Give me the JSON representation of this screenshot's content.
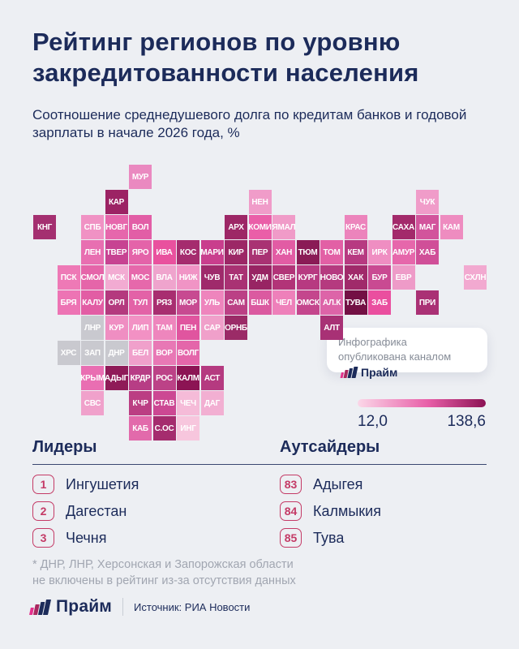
{
  "title": "Рейтинг регионов по уровню\nзакредитованности населения",
  "subtitle": "Соотношение среднедушевого долга по кредитам банков и годовой зарплаты в начале 2026 года, %",
  "badge": {
    "text": "Инфографика опубликована каналом",
    "brand": "Прайм"
  },
  "legend": {
    "min_label": "12,0",
    "max_label": "138,6",
    "gradient": [
      "#fbd7e8",
      "#e85fa8",
      "#8c1254"
    ]
  },
  "leaders": {
    "heading": "Лидеры",
    "items": [
      {
        "rank": "1",
        "name": "Ингушетия"
      },
      {
        "rank": "2",
        "name": "Дагестан"
      },
      {
        "rank": "3",
        "name": "Чечня"
      }
    ]
  },
  "outsiders": {
    "heading": "Аутсайдеры",
    "items": [
      {
        "rank": "83",
        "name": "Адыгея"
      },
      {
        "rank": "84",
        "name": "Калмыкия"
      },
      {
        "rank": "85",
        "name": "Тува"
      }
    ]
  },
  "footnote": "* ДНР, ЛНР, Херсонская и Запорожская области\nне включены в рейтинг из-за отсутствия данных",
  "footer": {
    "brand": "Прайм",
    "source": "Источник: РИА Новости"
  },
  "colors": {
    "background": "#edeff3",
    "heading_navy": "#1c2b5a",
    "rank_accent": "#c43a66",
    "excluded_gray": "#c9c9cf"
  },
  "map": {
    "tiles": [
      {
        "label": "МУР",
        "col": 4,
        "row": 0,
        "color": "#ea89c0"
      },
      {
        "label": "КАР",
        "col": 3,
        "row": 1,
        "color": "#9c2364"
      },
      {
        "label": "НЕН",
        "col": 9,
        "row": 1,
        "color": "#f09cc9"
      },
      {
        "label": "ЧУК",
        "col": 16,
        "row": 1,
        "color": "#f09cc9"
      },
      {
        "label": "КНГ",
        "col": 0,
        "row": 2,
        "color": "#a42f70"
      },
      {
        "label": "СПБ",
        "col": 2,
        "row": 2,
        "color": "#f092c4"
      },
      {
        "label": "НОВГ",
        "col": 3,
        "row": 2,
        "color": "#e667ac"
      },
      {
        "label": "ВОЛ",
        "col": 4,
        "row": 2,
        "color": "#e25ea6"
      },
      {
        "label": "АРХ",
        "col": 8,
        "row": 2,
        "color": "#9d2766"
      },
      {
        "label": "КОМИ",
        "col": 9,
        "row": 2,
        "color": "#ea5ea8"
      },
      {
        "label": "ЯМАЛ",
        "col": 10,
        "row": 2,
        "color": "#f09bc8"
      },
      {
        "label": "КРАС",
        "col": 13,
        "row": 2,
        "color": "#ec84bc"
      },
      {
        "label": "САХА",
        "col": 15,
        "row": 2,
        "color": "#a32a6b"
      },
      {
        "label": "МАГ",
        "col": 16,
        "row": 2,
        "color": "#d2549c"
      },
      {
        "label": "КАМ",
        "col": 17,
        "row": 2,
        "color": "#ee8cc0"
      },
      {
        "label": "ЛЕН",
        "col": 2,
        "row": 3,
        "color": "#e86fb1"
      },
      {
        "label": "ТВЕР",
        "col": 3,
        "row": 3,
        "color": "#c74392"
      },
      {
        "label": "ЯРО",
        "col": 4,
        "row": 3,
        "color": "#e463a9"
      },
      {
        "label": "ИВА",
        "col": 5,
        "row": 3,
        "color": "#e9519e"
      },
      {
        "label": "КОС",
        "col": 6,
        "row": 3,
        "color": "#a52c6e"
      },
      {
        "label": "МАРИ",
        "col": 7,
        "row": 3,
        "color": "#c93e8d"
      },
      {
        "label": "КИР",
        "col": 8,
        "row": 3,
        "color": "#9c2766"
      },
      {
        "label": "ПЕР",
        "col": 9,
        "row": 3,
        "color": "#a93273"
      },
      {
        "label": "ХАН",
        "col": 10,
        "row": 3,
        "color": "#e25ca4"
      },
      {
        "label": "ТЮМ",
        "col": 11,
        "row": 3,
        "color": "#8a1b56"
      },
      {
        "label": "ТОМ",
        "col": 12,
        "row": 3,
        "color": "#e260a5"
      },
      {
        "label": "КЕМ",
        "col": 13,
        "row": 3,
        "color": "#b73a81"
      },
      {
        "label": "ИРК",
        "col": 14,
        "row": 3,
        "color": "#ef8ec2"
      },
      {
        "label": "АМУР",
        "col": 15,
        "row": 3,
        "color": "#e667ab"
      },
      {
        "label": "ХАБ",
        "col": 16,
        "row": 3,
        "color": "#d04f98"
      },
      {
        "label": "ПСК",
        "col": 1,
        "row": 4,
        "color": "#ee79b6"
      },
      {
        "label": "СМОЛ",
        "col": 2,
        "row": 4,
        "color": "#e565a9"
      },
      {
        "label": "МСК",
        "col": 3,
        "row": 4,
        "color": "#f2abd2"
      },
      {
        "label": "МОС",
        "col": 4,
        "row": 4,
        "color": "#e668ab"
      },
      {
        "label": "ВЛА",
        "col": 5,
        "row": 4,
        "color": "#efa4cd"
      },
      {
        "label": "НИЖ",
        "col": 6,
        "row": 4,
        "color": "#f094c5"
      },
      {
        "label": "ЧУВ",
        "col": 7,
        "row": 4,
        "color": "#9f2a6b"
      },
      {
        "label": "ТАТ",
        "col": 8,
        "row": 4,
        "color": "#a93273"
      },
      {
        "label": "УДМ",
        "col": 9,
        "row": 4,
        "color": "#982463"
      },
      {
        "label": "СВЕР",
        "col": 10,
        "row": 4,
        "color": "#b23478"
      },
      {
        "label": "КУРГ",
        "col": 11,
        "row": 4,
        "color": "#b73a81"
      },
      {
        "label": "НОВО",
        "col": 12,
        "row": 4,
        "color": "#b53a7f"
      },
      {
        "label": "ХАК",
        "col": 13,
        "row": 4,
        "color": "#a02a6a"
      },
      {
        "label": "БУР",
        "col": 14,
        "row": 4,
        "color": "#c94a92"
      },
      {
        "label": "ЕВР",
        "col": 15,
        "row": 4,
        "color": "#ee9bc8"
      },
      {
        "label": "СХЛН",
        "col": 18,
        "row": 4,
        "color": "#f2a9d0"
      },
      {
        "label": "БРЯ",
        "col": 1,
        "row": 5,
        "color": "#ed74b4"
      },
      {
        "label": "КАЛУ",
        "col": 2,
        "row": 5,
        "color": "#e25da4"
      },
      {
        "label": "ОРЛ",
        "col": 3,
        "row": 5,
        "color": "#b4397e"
      },
      {
        "label": "ТУЛ",
        "col": 4,
        "row": 5,
        "color": "#e362a7"
      },
      {
        "label": "РЯЗ",
        "col": 5,
        "row": 5,
        "color": "#a82e70"
      },
      {
        "label": "МОР",
        "col": 6,
        "row": 5,
        "color": "#c74a91"
      },
      {
        "label": "УЛЬ",
        "col": 7,
        "row": 5,
        "color": "#ee85bd"
      },
      {
        "label": "САМ",
        "col": 8,
        "row": 5,
        "color": "#bb4085"
      },
      {
        "label": "БШК",
        "col": 9,
        "row": 5,
        "color": "#db5aa0"
      },
      {
        "label": "ЧЕЛ",
        "col": 10,
        "row": 5,
        "color": "#ee80ba"
      },
      {
        "label": "ОМСК",
        "col": 11,
        "row": 5,
        "color": "#c4468d"
      },
      {
        "label": "АЛ.К",
        "col": 12,
        "row": 5,
        "color": "#dd64a8"
      },
      {
        "label": "ТУВА",
        "col": 13,
        "row": 5,
        "color": "#731044"
      },
      {
        "label": "ЗАБ",
        "col": 14,
        "row": 5,
        "color": "#ea4f9f"
      },
      {
        "label": "ПРИ",
        "col": 16,
        "row": 5,
        "color": "#aa3175"
      },
      {
        "label": "ЛНР",
        "col": 2,
        "row": 6,
        "color": "#c9c9cf"
      },
      {
        "label": "КУР",
        "col": 3,
        "row": 6,
        "color": "#ef8ec2"
      },
      {
        "label": "ЛИП",
        "col": 4,
        "row": 6,
        "color": "#f291c4"
      },
      {
        "label": "ТАМ",
        "col": 5,
        "row": 6,
        "color": "#ee86bd"
      },
      {
        "label": "ПЕН",
        "col": 6,
        "row": 6,
        "color": "#e0559f"
      },
      {
        "label": "САР",
        "col": 7,
        "row": 6,
        "color": "#f0a0ca"
      },
      {
        "label": "ОРНБ",
        "col": 8,
        "row": 6,
        "color": "#9b2b67"
      },
      {
        "label": "АЛТ",
        "col": 12,
        "row": 6,
        "color": "#a83175"
      },
      {
        "label": "ХРС",
        "col": 1,
        "row": 7,
        "color": "#c9c9cf"
      },
      {
        "label": "ЗАП",
        "col": 2,
        "row": 7,
        "color": "#c9c9cf"
      },
      {
        "label": "ДНР",
        "col": 3,
        "row": 7,
        "color": "#c9c9cf"
      },
      {
        "label": "БЕЛ",
        "col": 4,
        "row": 7,
        "color": "#f0a0cb"
      },
      {
        "label": "ВОР",
        "col": 5,
        "row": 7,
        "color": "#e878b5"
      },
      {
        "label": "ВОЛГ",
        "col": 6,
        "row": 7,
        "color": "#e466aa"
      },
      {
        "label": "КРЫМ",
        "col": 2,
        "row": 8,
        "color": "#e96eb2"
      },
      {
        "label": "АДЫГ",
        "col": 3,
        "row": 8,
        "color": "#8f1b58"
      },
      {
        "label": "КРДР",
        "col": 4,
        "row": 8,
        "color": "#b73d85"
      },
      {
        "label": "РОС",
        "col": 5,
        "row": 8,
        "color": "#bc4287"
      },
      {
        "label": "КАЛМ",
        "col": 6,
        "row": 8,
        "color": "#8c1454"
      },
      {
        "label": "АСТ",
        "col": 7,
        "row": 8,
        "color": "#b53a80"
      },
      {
        "label": "СВС",
        "col": 2,
        "row": 9,
        "color": "#f0a1cb"
      },
      {
        "label": "КЧР",
        "col": 4,
        "row": 9,
        "color": "#bb3e83"
      },
      {
        "label": "СТАВ",
        "col": 5,
        "row": 9,
        "color": "#cc4893"
      },
      {
        "label": "ЧЕЧ",
        "col": 6,
        "row": 9,
        "color": "#f5bbd8"
      },
      {
        "label": "ДАГ",
        "col": 7,
        "row": 9,
        "color": "#f2afd2"
      },
      {
        "label": "КАБ",
        "col": 4,
        "row": 10,
        "color": "#e26aab"
      },
      {
        "label": "С.ОС",
        "col": 5,
        "row": 10,
        "color": "#a52c6e"
      },
      {
        "label": "ИНГ",
        "col": 6,
        "row": 10,
        "color": "#f7c6dd"
      }
    ]
  }
}
